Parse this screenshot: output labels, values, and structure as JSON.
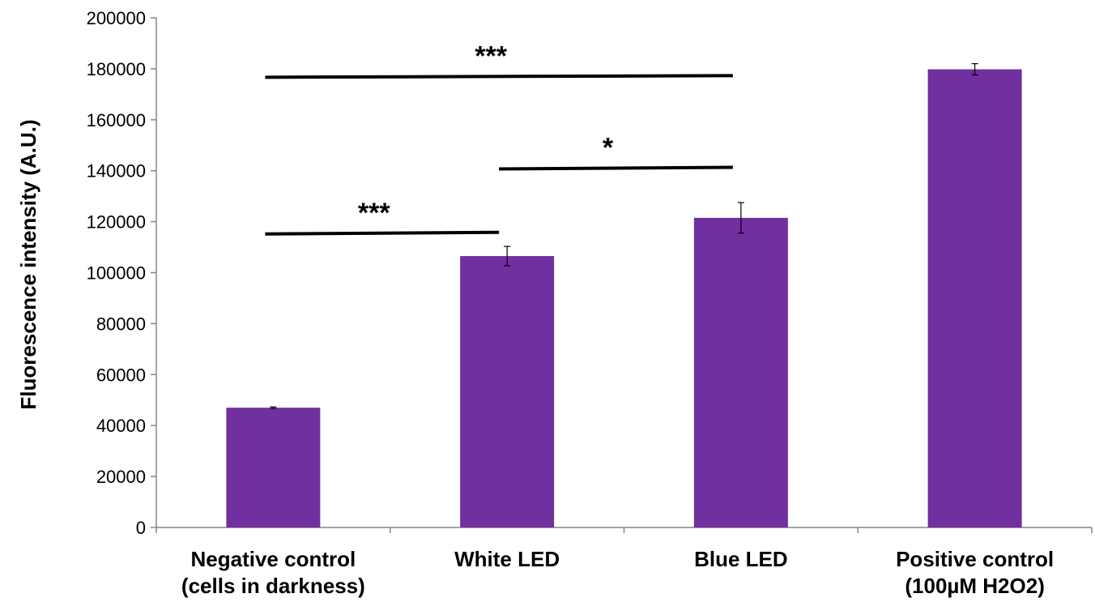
{
  "chart_data": {
    "type": "bar",
    "title": "",
    "xlabel": "",
    "ylabel": "Fluorescence  intensity (A.U.)",
    "ylim": [
      0,
      200000
    ],
    "yticks": [
      0,
      20000,
      40000,
      60000,
      80000,
      100000,
      120000,
      140000,
      160000,
      180000,
      200000
    ],
    "grid": false,
    "legend": "none",
    "categories": [
      [
        "Negative control",
        "(cells in darkness)"
      ],
      [
        "White LED"
      ],
      [
        "Blue LED"
      ],
      [
        "Positive control",
        "(100µM H2O2)"
      ]
    ],
    "values": [
      47000,
      106500,
      121500,
      179800
    ],
    "error": [
      300,
      3800,
      6000,
      2200
    ],
    "bar_color": "#7030A0",
    "significance": [
      {
        "from": 0,
        "to": 2,
        "label": "***",
        "y": 177000
      },
      {
        "from": 1,
        "to": 2,
        "label": "*",
        "y": 141000
      },
      {
        "from": 0,
        "to": 1,
        "label": "***",
        "y": 115500
      }
    ]
  }
}
